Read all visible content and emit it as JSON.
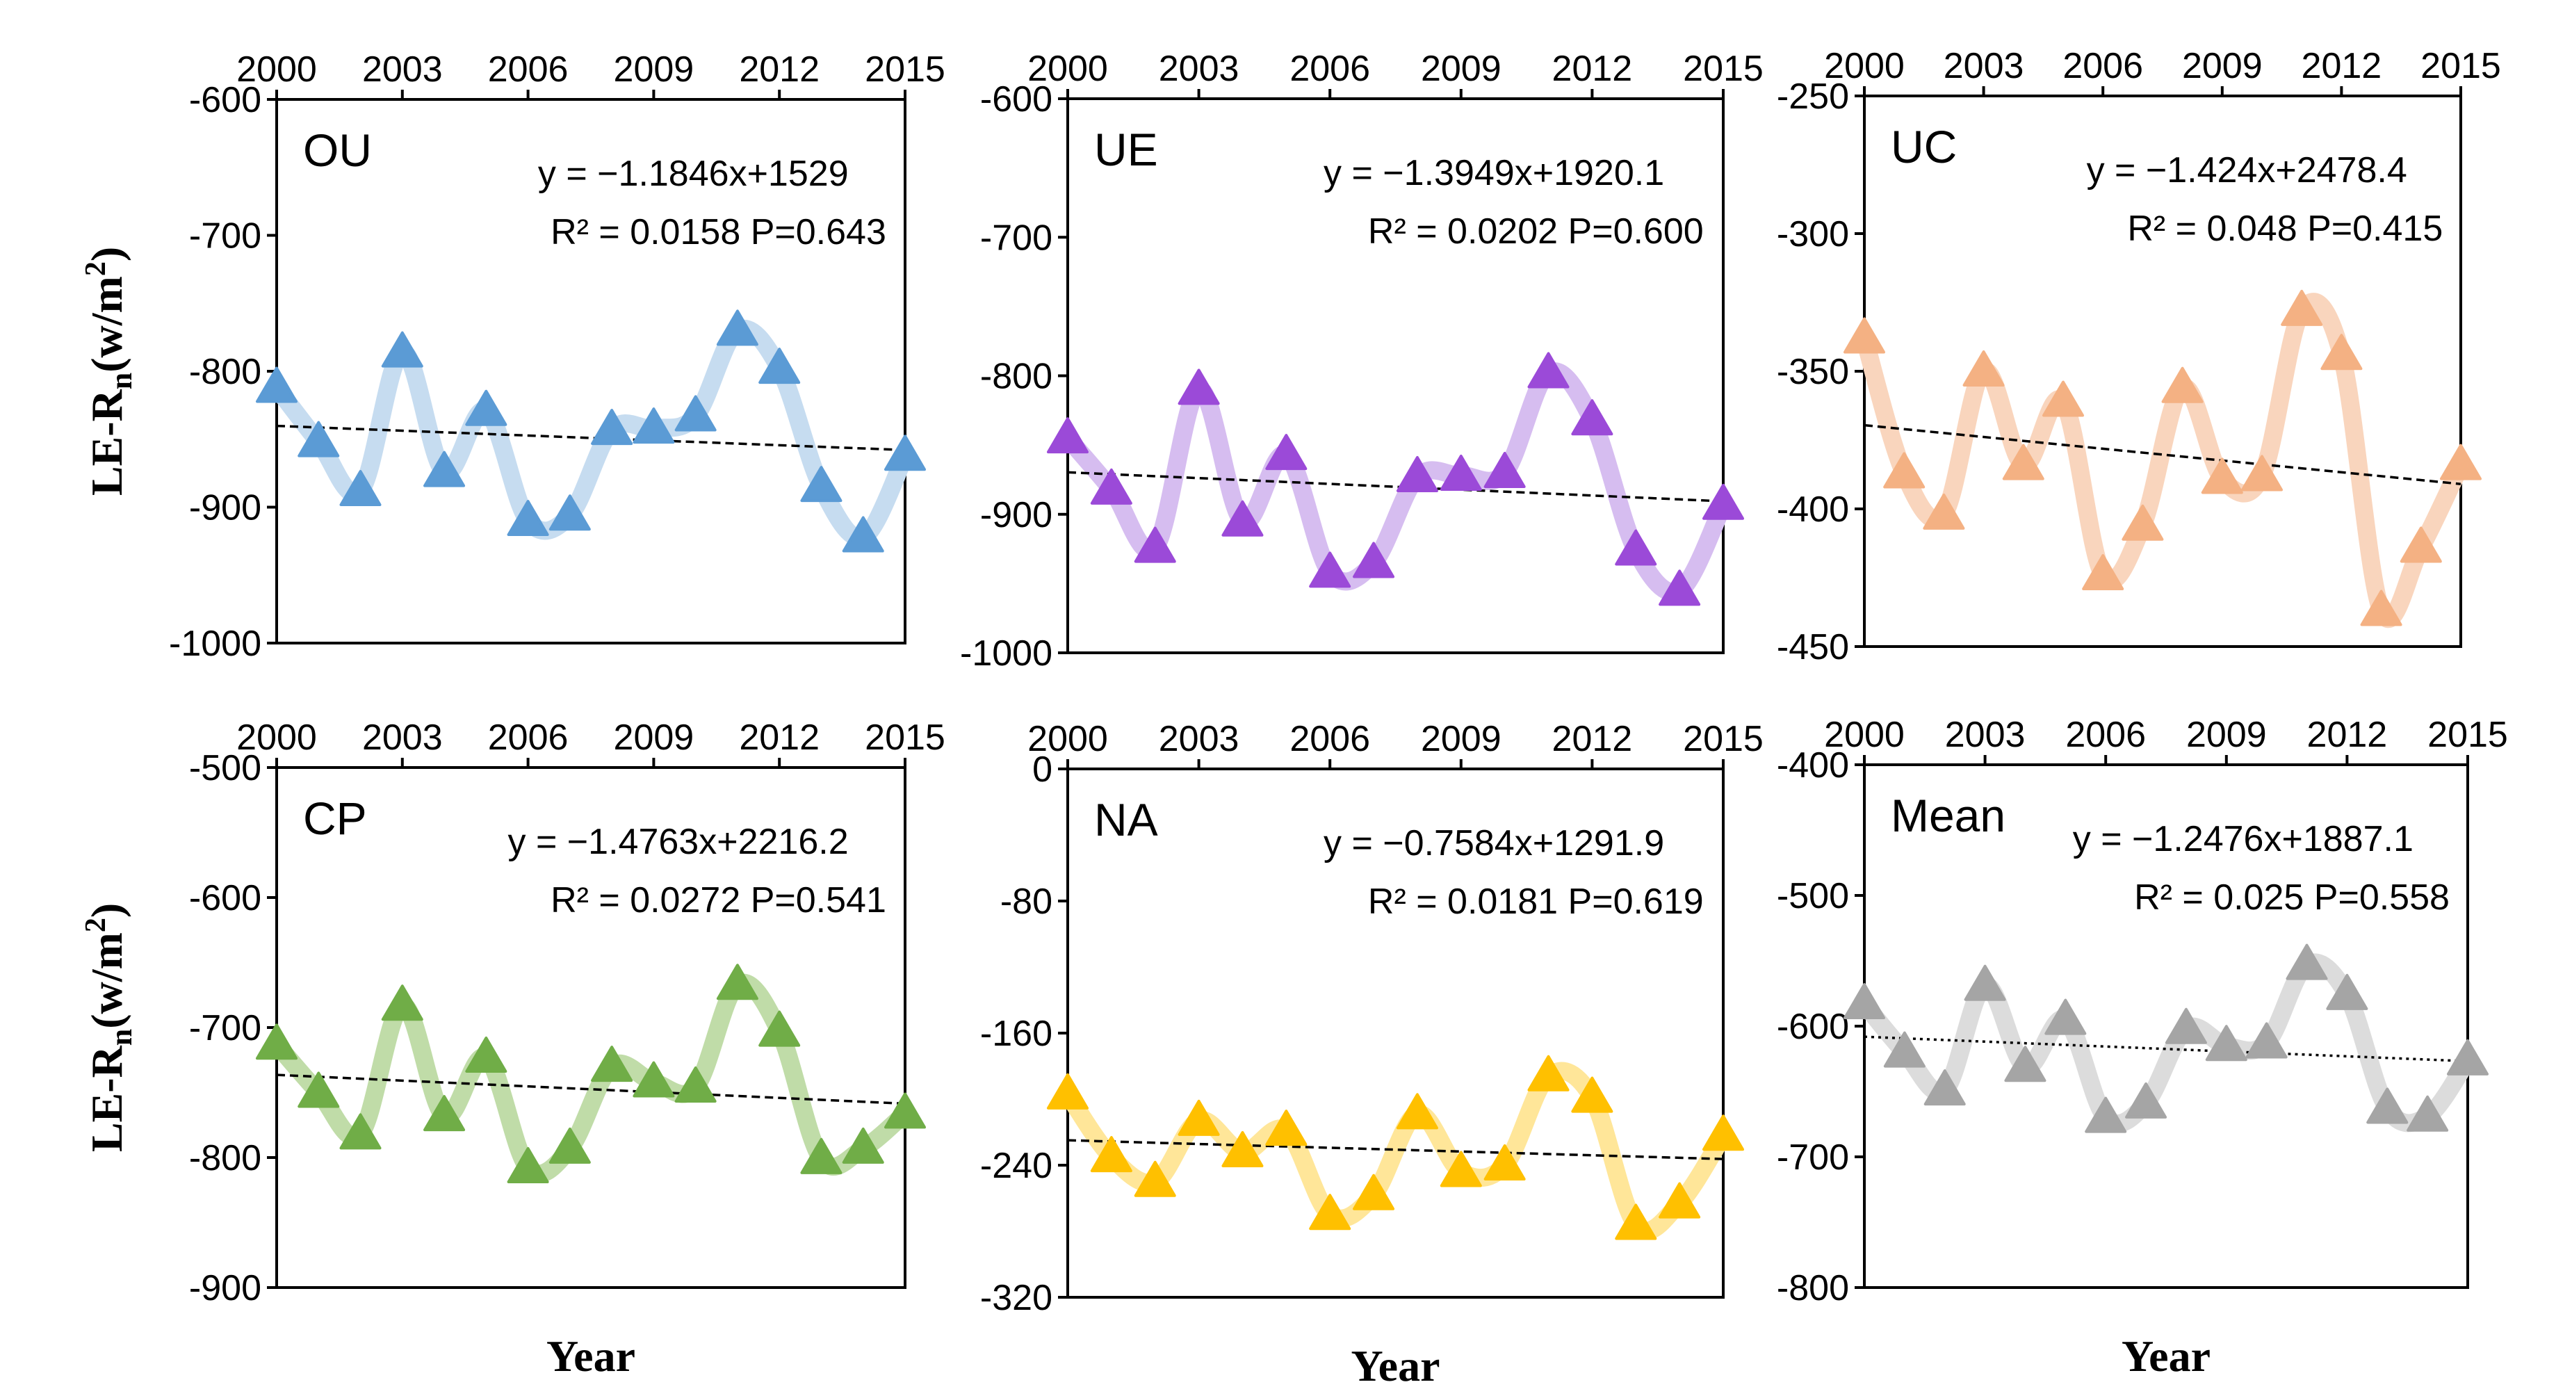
{
  "chart_data": [
    {
      "type": "line",
      "panel_label": "OU",
      "x": [
        2000,
        2001,
        2002,
        2003,
        2004,
        2005,
        2006,
        2007,
        2008,
        2009,
        2010,
        2011,
        2012,
        2013,
        2014,
        2015
      ],
      "values": [
        -812,
        -852,
        -888,
        -786,
        -874,
        -829,
        -910,
        -906,
        -843,
        -842,
        -833,
        -770,
        -798,
        -885,
        -922,
        -862
      ],
      "x_ticks": [
        "2000",
        "2003",
        "2006",
        "2009",
        "2012",
        "2015"
      ],
      "y_ticks": [
        "-600",
        "-700",
        "-800",
        "-900",
        "-1000"
      ],
      "ylim": [
        -1000,
        -600
      ],
      "equation": "y = −1.1846x+1529",
      "stats": "R² = 0.0158    P=0.643",
      "trend": {
        "slope": -1.1846,
        "intercept": 1529
      },
      "marker_color": "#5b9bd5",
      "line_color": "#c6dcf0",
      "ylabel": "LE-R",
      "ylabel_sub": "n",
      "ylabel_unit": "(w/m",
      "ylabel_sup": "2",
      "ylabel_close": ")",
      "xlabel": ""
    },
    {
      "type": "line",
      "panel_label": "UE",
      "x": [
        2000,
        2001,
        2002,
        2003,
        2004,
        2005,
        2006,
        2007,
        2008,
        2009,
        2010,
        2011,
        2012,
        2013,
        2014,
        2015
      ],
      "values": [
        -845,
        -882,
        -924,
        -810,
        -905,
        -857,
        -942,
        -935,
        -873,
        -872,
        -870,
        -798,
        -832,
        -926,
        -955,
        -893
      ],
      "x_ticks": [
        "2000",
        "2003",
        "2006",
        "2009",
        "2012",
        "2015"
      ],
      "y_ticks": [
        "-600",
        "-700",
        "-800",
        "-900",
        "-1000"
      ],
      "ylim": [
        -1000,
        -600
      ],
      "equation": "y = −1.3949x+1920.1",
      "stats": "R² = 0.0202    P=0.600",
      "trend": {
        "slope": -1.3949,
        "intercept": 1920.1
      },
      "marker_color": "#9b4ad8",
      "line_color": "#d6bdf0",
      "ylabel": "",
      "xlabel": ""
    },
    {
      "type": "line",
      "panel_label": "UC",
      "x": [
        2000,
        2001,
        2002,
        2003,
        2004,
        2005,
        2006,
        2007,
        2008,
        2009,
        2010,
        2011,
        2012,
        2013,
        2014,
        2015
      ],
      "values": [
        -338,
        -387,
        -402,
        -350,
        -384,
        -361,
        -424,
        -406,
        -356,
        -389,
        -388,
        -328,
        -344,
        -437,
        -414,
        -384
      ],
      "x_ticks": [
        "2000",
        "2003",
        "2006",
        "2009",
        "2012",
        "2015"
      ],
      "y_ticks": [
        "-250",
        "-300",
        "-350",
        "-400",
        "-450"
      ],
      "ylim": [
        -450,
        -250
      ],
      "equation": "y = −1.424x+2478.4",
      "stats": "R² = 0.048    P=0.415",
      "trend": {
        "slope": -1.424,
        "intercept": 2478.4
      },
      "marker_color": "#f4b183",
      "line_color": "#f9d5bd",
      "ylabel": "",
      "xlabel": ""
    },
    {
      "type": "line",
      "panel_label": "CP",
      "x": [
        2000,
        2001,
        2002,
        2003,
        2004,
        2005,
        2006,
        2007,
        2008,
        2009,
        2010,
        2011,
        2012,
        2013,
        2014,
        2015
      ],
      "values": [
        -713,
        -750,
        -782,
        -683,
        -768,
        -723,
        -808,
        -793,
        -730,
        -742,
        -746,
        -667,
        -703,
        -801,
        -793,
        -766
      ],
      "x_ticks": [
        "2000",
        "2003",
        "2006",
        "2009",
        "2012",
        "2015"
      ],
      "y_ticks": [
        "-500",
        "-600",
        "-700",
        "-800",
        "-900"
      ],
      "ylim": [
        -900,
        -500
      ],
      "equation": "y = −1.4763x+2216.2",
      "stats": "R² = 0.0272    P=0.541",
      "trend": {
        "slope": -1.4763,
        "intercept": 2216.2
      },
      "marker_color": "#70ad47",
      "line_color": "#c0dca8",
      "ylabel": "LE-R",
      "ylabel_sub": "n",
      "ylabel_unit": "(w/m",
      "ylabel_sup": "2",
      "ylabel_close": ")",
      "xlabel": "Year"
    },
    {
      "type": "line",
      "panel_label": "NA",
      "x": [
        2000,
        2001,
        2002,
        2003,
        2004,
        2005,
        2006,
        2007,
        2008,
        2009,
        2010,
        2011,
        2012,
        2013,
        2014,
        2015
      ],
      "values": [
        -197,
        -235,
        -250,
        -213,
        -232,
        -219,
        -270,
        -258,
        -209,
        -244,
        -240,
        -186,
        -199,
        -276,
        -263,
        -222
      ],
      "x_ticks": [
        "2000",
        "2003",
        "2006",
        "2009",
        "2012",
        "2015"
      ],
      "y_ticks": [
        "0",
        "-80",
        "-160",
        "-240",
        "-320"
      ],
      "ylim": [
        -320,
        0
      ],
      "equation": "y = −0.7584x+1291.9",
      "stats": "R² = 0.0181    P=0.619",
      "trend": {
        "slope": -0.7584,
        "intercept": 1291.9
      },
      "marker_color": "#ffc000",
      "line_color": "#ffe699",
      "ylabel": "",
      "xlabel": "Year"
    },
    {
      "type": "line",
      "panel_label": "Mean",
      "x": [
        2000,
        2001,
        2002,
        2003,
        2004,
        2005,
        2006,
        2007,
        2008,
        2009,
        2010,
        2011,
        2012,
        2013,
        2014,
        2015
      ],
      "values": [
        -583,
        -620,
        -649,
        -569,
        -631,
        -595,
        -670,
        -659,
        -602,
        -615,
        -613,
        -553,
        -576,
        -663,
        -669,
        -626
      ],
      "x_ticks": [
        "2000",
        "2003",
        "2006",
        "2009",
        "2012",
        "2015"
      ],
      "y_ticks": [
        "-400",
        "-500",
        "-600",
        "-700",
        "-800"
      ],
      "ylim": [
        -800,
        -400
      ],
      "equation": "y = −1.2476x+1887.1",
      "stats": "R² = 0.025    P=0.558",
      "trend": {
        "slope": -1.2476,
        "intercept": 1887.1
      },
      "marker_color": "#a5a5a5",
      "line_color": "#dcdcdc",
      "ylabel": "",
      "xlabel": "Year"
    }
  ]
}
